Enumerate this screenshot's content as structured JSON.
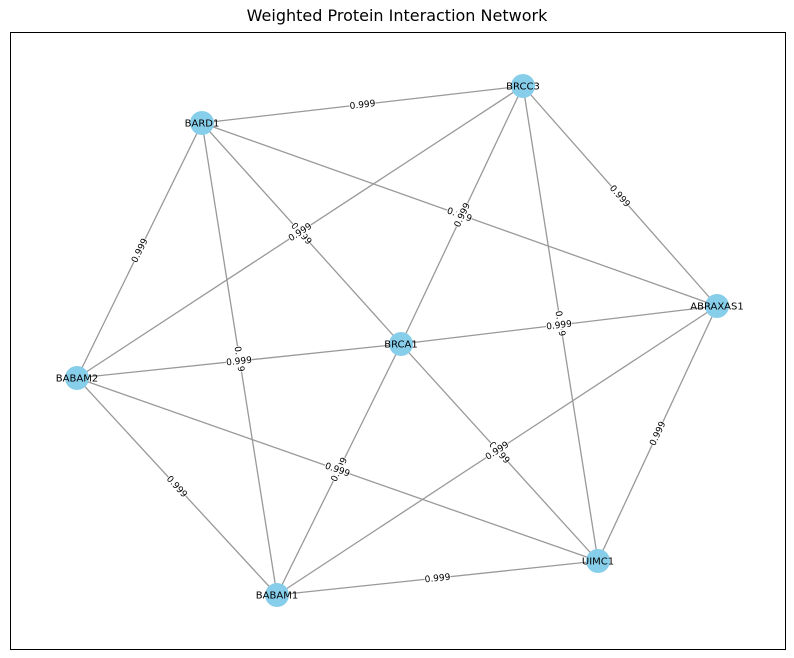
{
  "title": "Weighted Protein Interaction Network",
  "node_color": "#87ceeb",
  "edge_color": "#999999",
  "nodes": [
    "BRCA1",
    "BARD1",
    "BRCC3",
    "ABRAXAS1",
    "UIMC1",
    "BABAM1",
    "BABAM2"
  ],
  "edges": [
    {
      "source": "BARD1",
      "target": "BRCC3",
      "weight": "0.999"
    },
    {
      "source": "BARD1",
      "target": "BRCA1",
      "weight": "0.999"
    },
    {
      "source": "BARD1",
      "target": "ABRAXAS1",
      "weight": "0.999"
    },
    {
      "source": "BARD1",
      "target": "BABAM2",
      "weight": "0.999"
    },
    {
      "source": "BARD1",
      "target": "BABAM1",
      "weight": "0.999"
    },
    {
      "source": "BRCC3",
      "target": "BRCA1",
      "weight": "0.999"
    },
    {
      "source": "BRCC3",
      "target": "ABRAXAS1",
      "weight": "0.999"
    },
    {
      "source": "BRCC3",
      "target": "BABAM2",
      "weight": "0.999"
    },
    {
      "source": "BRCC3",
      "target": "UIMC1",
      "weight": "0.999"
    },
    {
      "source": "BRCA1",
      "target": "ABRAXAS1",
      "weight": "0.999"
    },
    {
      "source": "BRCA1",
      "target": "BABAM2",
      "weight": "0.999"
    },
    {
      "source": "BRCA1",
      "target": "BABAM1",
      "weight": "0.999"
    },
    {
      "source": "BRCA1",
      "target": "UIMC1",
      "weight": "0.999"
    },
    {
      "source": "ABRAXAS1",
      "target": "UIMC1",
      "weight": "0.999"
    },
    {
      "source": "ABRAXAS1",
      "target": "BABAM1",
      "weight": "0.999"
    },
    {
      "source": "BABAM2",
      "target": "BABAM1",
      "weight": "0.999"
    },
    {
      "source": "BABAM2",
      "target": "UIMC1",
      "weight": "0.999"
    },
    {
      "source": "BABAM1",
      "target": "UIMC1",
      "weight": "0.999"
    }
  ]
}
